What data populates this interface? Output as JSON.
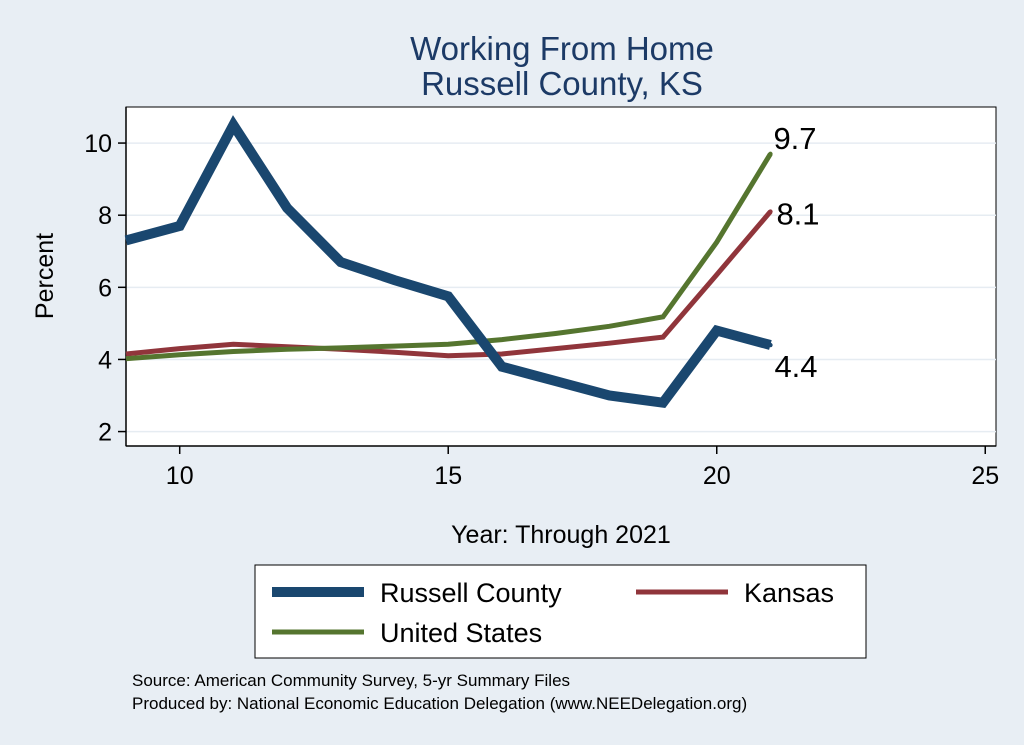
{
  "chart_data": {
    "type": "line",
    "title": [
      "Working From Home",
      "Russell County, KS"
    ],
    "xlabel": "Year: Through 2021",
    "ylabel": "Percent",
    "xlim": [
      9,
      25.2
    ],
    "ylim": [
      1.6,
      11.0
    ],
    "xticks": [
      10,
      15,
      20,
      25
    ],
    "yticks": [
      2,
      4,
      6,
      8,
      10
    ],
    "grid": true,
    "series": [
      {
        "name": "Russell County",
        "color": "#1a476f",
        "x": [
          9,
          10,
          11,
          12,
          13,
          14,
          15,
          16,
          17,
          18,
          19,
          20,
          21
        ],
        "y": [
          7.3,
          7.7,
          10.5,
          8.2,
          6.7,
          6.2,
          5.75,
          3.8,
          3.4,
          3.0,
          2.8,
          4.8,
          4.4
        ],
        "end_label": "4.4"
      },
      {
        "name": "Kansas",
        "color": "#90353b",
        "x": [
          9,
          10,
          11,
          12,
          13,
          14,
          15,
          16,
          17,
          18,
          19,
          20,
          21
        ],
        "y": [
          4.15,
          4.3,
          4.42,
          4.35,
          4.28,
          4.2,
          4.1,
          4.15,
          4.3,
          4.45,
          4.62,
          6.35,
          8.1
        ],
        "end_label": "8.1"
      },
      {
        "name": "United States",
        "color": "#55752f",
        "x": [
          9,
          10,
          11,
          12,
          13,
          14,
          15,
          16,
          17,
          18,
          19,
          20,
          21
        ],
        "y": [
          4.02,
          4.13,
          4.22,
          4.28,
          4.32,
          4.37,
          4.42,
          4.55,
          4.72,
          4.92,
          5.18,
          7.25,
          9.7
        ],
        "end_label": "9.7"
      }
    ],
    "legend_position": "bottom",
    "notes": [
      "Source: American Community Survey, 5-yr Summary Files",
      "Produced by: National Economic Education Delegation (www.NEEDelegation.org)"
    ]
  }
}
